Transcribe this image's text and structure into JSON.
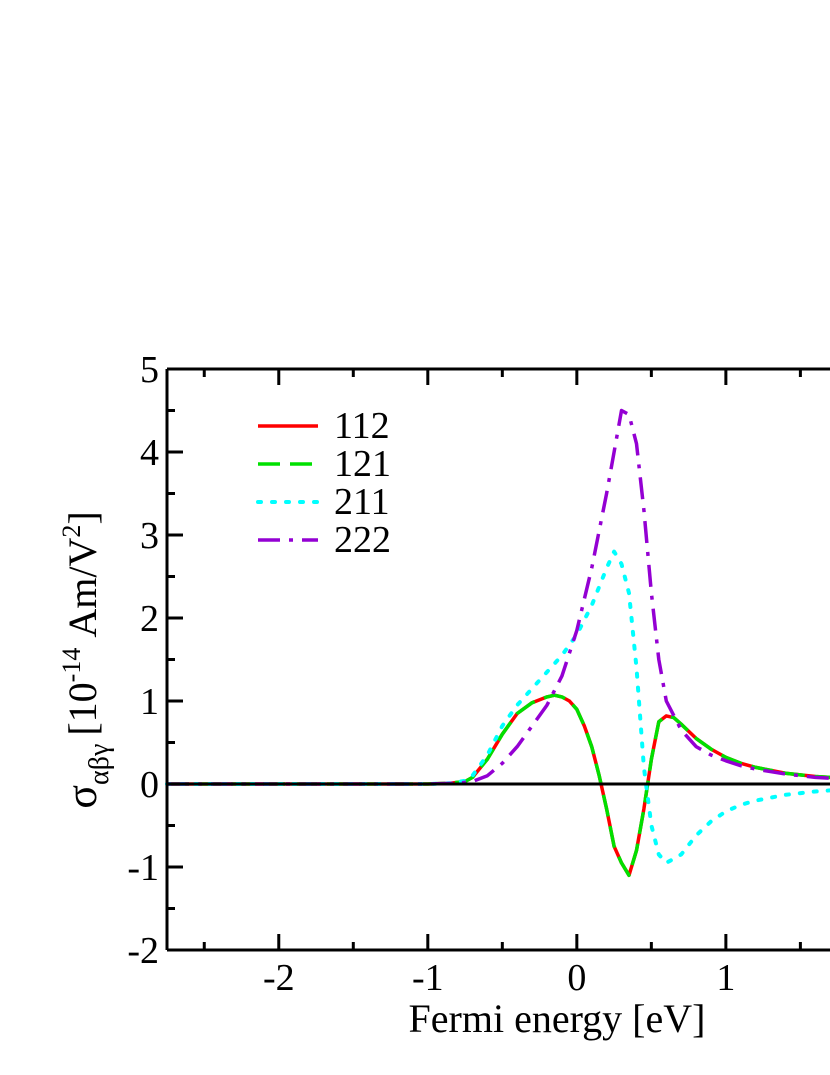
{
  "chart_data": {
    "type": "line",
    "title": "",
    "xlabel": "Fermi energy [eV]",
    "ylabel": {
      "symbol": "σ",
      "subscript": "αβγ",
      "prefix": "[10",
      "exponent": "-14",
      "unit_mid": " Am/V",
      "unit_exponent": "2",
      "suffix": "]"
    },
    "xlim": [
      -2.75,
      1.9
    ],
    "ylim": [
      -2,
      5
    ],
    "x_ticks": [
      -2,
      -1,
      0,
      1
    ],
    "x_tick_labels": [
      "-2",
      "-1",
      "0",
      "1"
    ],
    "y_ticks": [
      -2,
      -1,
      0,
      1,
      2,
      3,
      4,
      5
    ],
    "y_tick_labels": [
      "-2",
      "-1",
      "0",
      "1",
      "2",
      "3",
      "4",
      "5"
    ],
    "grid": false,
    "legend_position": "top-left",
    "zero_line": true,
    "series": [
      {
        "name": "112",
        "color": "#ff0000",
        "dash": "solid",
        "x": [
          -2.75,
          -1.0,
          -0.85,
          -0.75,
          -0.7,
          -0.6,
          -0.5,
          -0.4,
          -0.3,
          -0.2,
          -0.15,
          -0.1,
          -0.05,
          0.0,
          0.05,
          0.1,
          0.15,
          0.2,
          0.25,
          0.3,
          0.35,
          0.4,
          0.45,
          0.5,
          0.55,
          0.6,
          0.65,
          0.7,
          0.8,
          0.9,
          1.0,
          1.1,
          1.2,
          1.4,
          1.6,
          1.9
        ],
        "y": [
          0,
          0,
          0.01,
          0.03,
          0.08,
          0.3,
          0.6,
          0.85,
          0.98,
          1.05,
          1.07,
          1.05,
          1.0,
          0.9,
          0.7,
          0.45,
          0.1,
          -0.3,
          -0.75,
          -0.95,
          -1.1,
          -0.8,
          -0.3,
          0.3,
          0.75,
          0.82,
          0.8,
          0.72,
          0.55,
          0.42,
          0.32,
          0.25,
          0.2,
          0.13,
          0.09,
          0.06
        ]
      },
      {
        "name": "121",
        "color": "#00e000",
        "dash": "dashed",
        "x": [
          -2.75,
          -1.0,
          -0.85,
          -0.75,
          -0.7,
          -0.6,
          -0.5,
          -0.4,
          -0.3,
          -0.2,
          -0.15,
          -0.1,
          -0.05,
          0.0,
          0.05,
          0.1,
          0.15,
          0.2,
          0.25,
          0.3,
          0.35,
          0.4,
          0.45,
          0.5,
          0.55,
          0.6,
          0.65,
          0.7,
          0.8,
          0.9,
          1.0,
          1.1,
          1.2,
          1.4,
          1.6,
          1.9
        ],
        "y": [
          0,
          0,
          0.01,
          0.03,
          0.08,
          0.3,
          0.6,
          0.85,
          0.98,
          1.05,
          1.07,
          1.05,
          1.0,
          0.9,
          0.7,
          0.45,
          0.1,
          -0.3,
          -0.75,
          -0.95,
          -1.1,
          -0.8,
          -0.3,
          0.3,
          0.75,
          0.82,
          0.8,
          0.72,
          0.55,
          0.42,
          0.32,
          0.25,
          0.2,
          0.13,
          0.09,
          0.06
        ]
      },
      {
        "name": "211",
        "color": "#00ffff",
        "dash": "dotted",
        "x": [
          -2.75,
          -1.0,
          -0.85,
          -0.75,
          -0.7,
          -0.6,
          -0.5,
          -0.4,
          -0.3,
          -0.2,
          -0.1,
          0.0,
          0.1,
          0.2,
          0.25,
          0.3,
          0.35,
          0.4,
          0.45,
          0.5,
          0.55,
          0.6,
          0.7,
          0.8,
          0.9,
          1.0,
          1.1,
          1.2,
          1.4,
          1.6,
          1.9
        ],
        "y": [
          0,
          0,
          0.01,
          0.04,
          0.1,
          0.35,
          0.7,
          0.95,
          1.15,
          1.35,
          1.55,
          1.8,
          2.15,
          2.6,
          2.8,
          2.65,
          2.3,
          1.4,
          0.2,
          -0.5,
          -0.85,
          -0.95,
          -0.85,
          -0.62,
          -0.45,
          -0.33,
          -0.25,
          -0.2,
          -0.13,
          -0.09,
          -0.05
        ]
      },
      {
        "name": "222",
        "color": "#9400d3",
        "dash": "dashdot",
        "x": [
          -2.75,
          -1.0,
          -0.8,
          -0.7,
          -0.6,
          -0.5,
          -0.4,
          -0.3,
          -0.2,
          -0.1,
          0.0,
          0.1,
          0.2,
          0.25,
          0.3,
          0.35,
          0.4,
          0.45,
          0.5,
          0.55,
          0.6,
          0.7,
          0.8,
          0.9,
          1.0,
          1.1,
          1.2,
          1.4,
          1.6,
          1.9
        ],
        "y": [
          0,
          0,
          0.01,
          0.03,
          0.1,
          0.25,
          0.45,
          0.7,
          0.95,
          1.3,
          1.85,
          2.6,
          3.5,
          4.0,
          4.5,
          4.45,
          4.1,
          3.3,
          2.3,
          1.5,
          1.0,
          0.65,
          0.45,
          0.35,
          0.28,
          0.22,
          0.18,
          0.12,
          0.08,
          0.05
        ]
      }
    ]
  }
}
